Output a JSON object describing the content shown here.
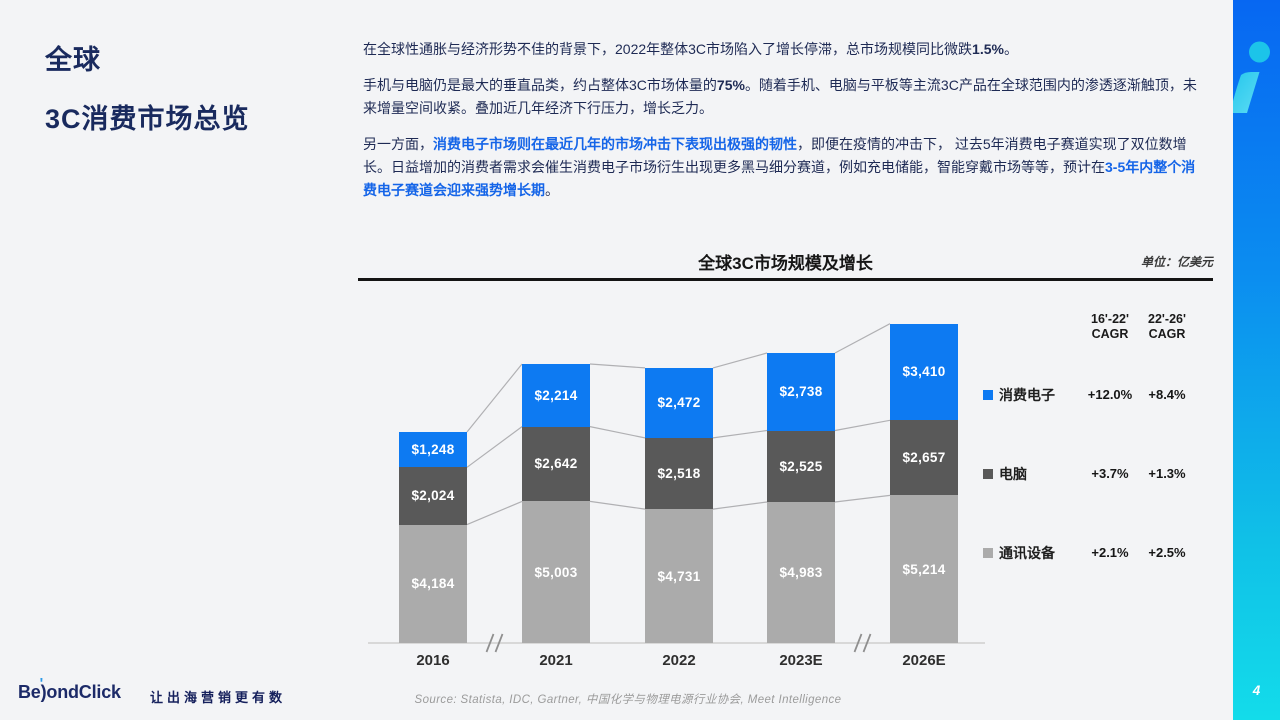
{
  "sidebar_title": {
    "line1": "全球",
    "line2": "3C消费市场总览"
  },
  "paragraphs": [
    {
      "segments": [
        {
          "t": "在全球性通胀与经济形势不佳的背景下，2022年整体3C市场陷入了增长停滞，总市场规模同比微跌",
          "s": "n"
        },
        {
          "t": "1.5%",
          "s": "b"
        },
        {
          "t": "。",
          "s": "n"
        }
      ]
    },
    {
      "segments": [
        {
          "t": "手机与电脑仍是最大的垂直品类，约占整体3C市场体量的",
          "s": "n"
        },
        {
          "t": "75%",
          "s": "b"
        },
        {
          "t": "。随着手机、电脑与平板等主流3C产品在全球范围内的渗透逐渐触顶，未来增量空间收紧。叠加近几年经济下行压力，增长乏力。",
          "s": "n"
        }
      ]
    },
    {
      "segments": [
        {
          "t": "另一方面，",
          "s": "n"
        },
        {
          "t": "消费电子市场则在最近几年的市场冲击下表现出极强的韧性",
          "s": "hb"
        },
        {
          "t": "，即便在疫情的冲击下， 过去5年消费电子赛道实现了双位数增长。日益增加的消费者需求会催生消费电子市场衍生出现更多黑马细分赛道，例如充电储能，智能穿戴市场等等，预计在",
          "s": "n"
        },
        {
          "t": "3-5年内整个消费电子赛道会迎来强势增长期",
          "s": "hb"
        },
        {
          "t": "。",
          "s": "n"
        }
      ]
    }
  ],
  "chart_data": {
    "type": "bar",
    "stacked": true,
    "title": "全球3C市场规模及增长",
    "unit": "单位：亿美元",
    "value_prefix": "$",
    "categories": [
      "2016",
      "2021",
      "2022",
      "2023E",
      "2026E"
    ],
    "x_axis_breaks_after_index": [
      0,
      3
    ],
    "series_bottom_up": [
      {
        "name": "通讯设备",
        "color": "#ababab",
        "values": [
          4184,
          5003,
          4731,
          4983,
          5214
        ],
        "cagr": [
          "+2.1%",
          "+2.5%"
        ]
      },
      {
        "name": "电脑",
        "color": "#595959",
        "values": [
          2024,
          2642,
          2518,
          2525,
          2657
        ],
        "cagr": [
          "+3.7%",
          "+1.3%"
        ]
      },
      {
        "name": "消费电子",
        "color": "#0d7af2",
        "values": [
          1248,
          2214,
          2472,
          2738,
          3410
        ],
        "cagr": [
          "+12.0%",
          "+8.4%"
        ]
      }
    ],
    "cagr_headers": [
      [
        "16'-22'",
        "CAGR"
      ],
      [
        "22'-26'",
        "CAGR"
      ]
    ],
    "legend_position": "right",
    "grid": false
  },
  "footer": {
    "logo_pre": "Be",
    "logo_y": ")",
    "logo_accent": "'",
    "logo_post": "ondClick",
    "tagline": "让出海营销更有数",
    "source": "Source: Statista, IDC, Gartner, 中国化学与物理电源行业协会, Meet Intelligence"
  },
  "ribbon": {
    "page_number": "4",
    "accent_color": "#1fcdec",
    "gradient_top": "#0767f2",
    "gradient_bottom": "#13dcea"
  }
}
